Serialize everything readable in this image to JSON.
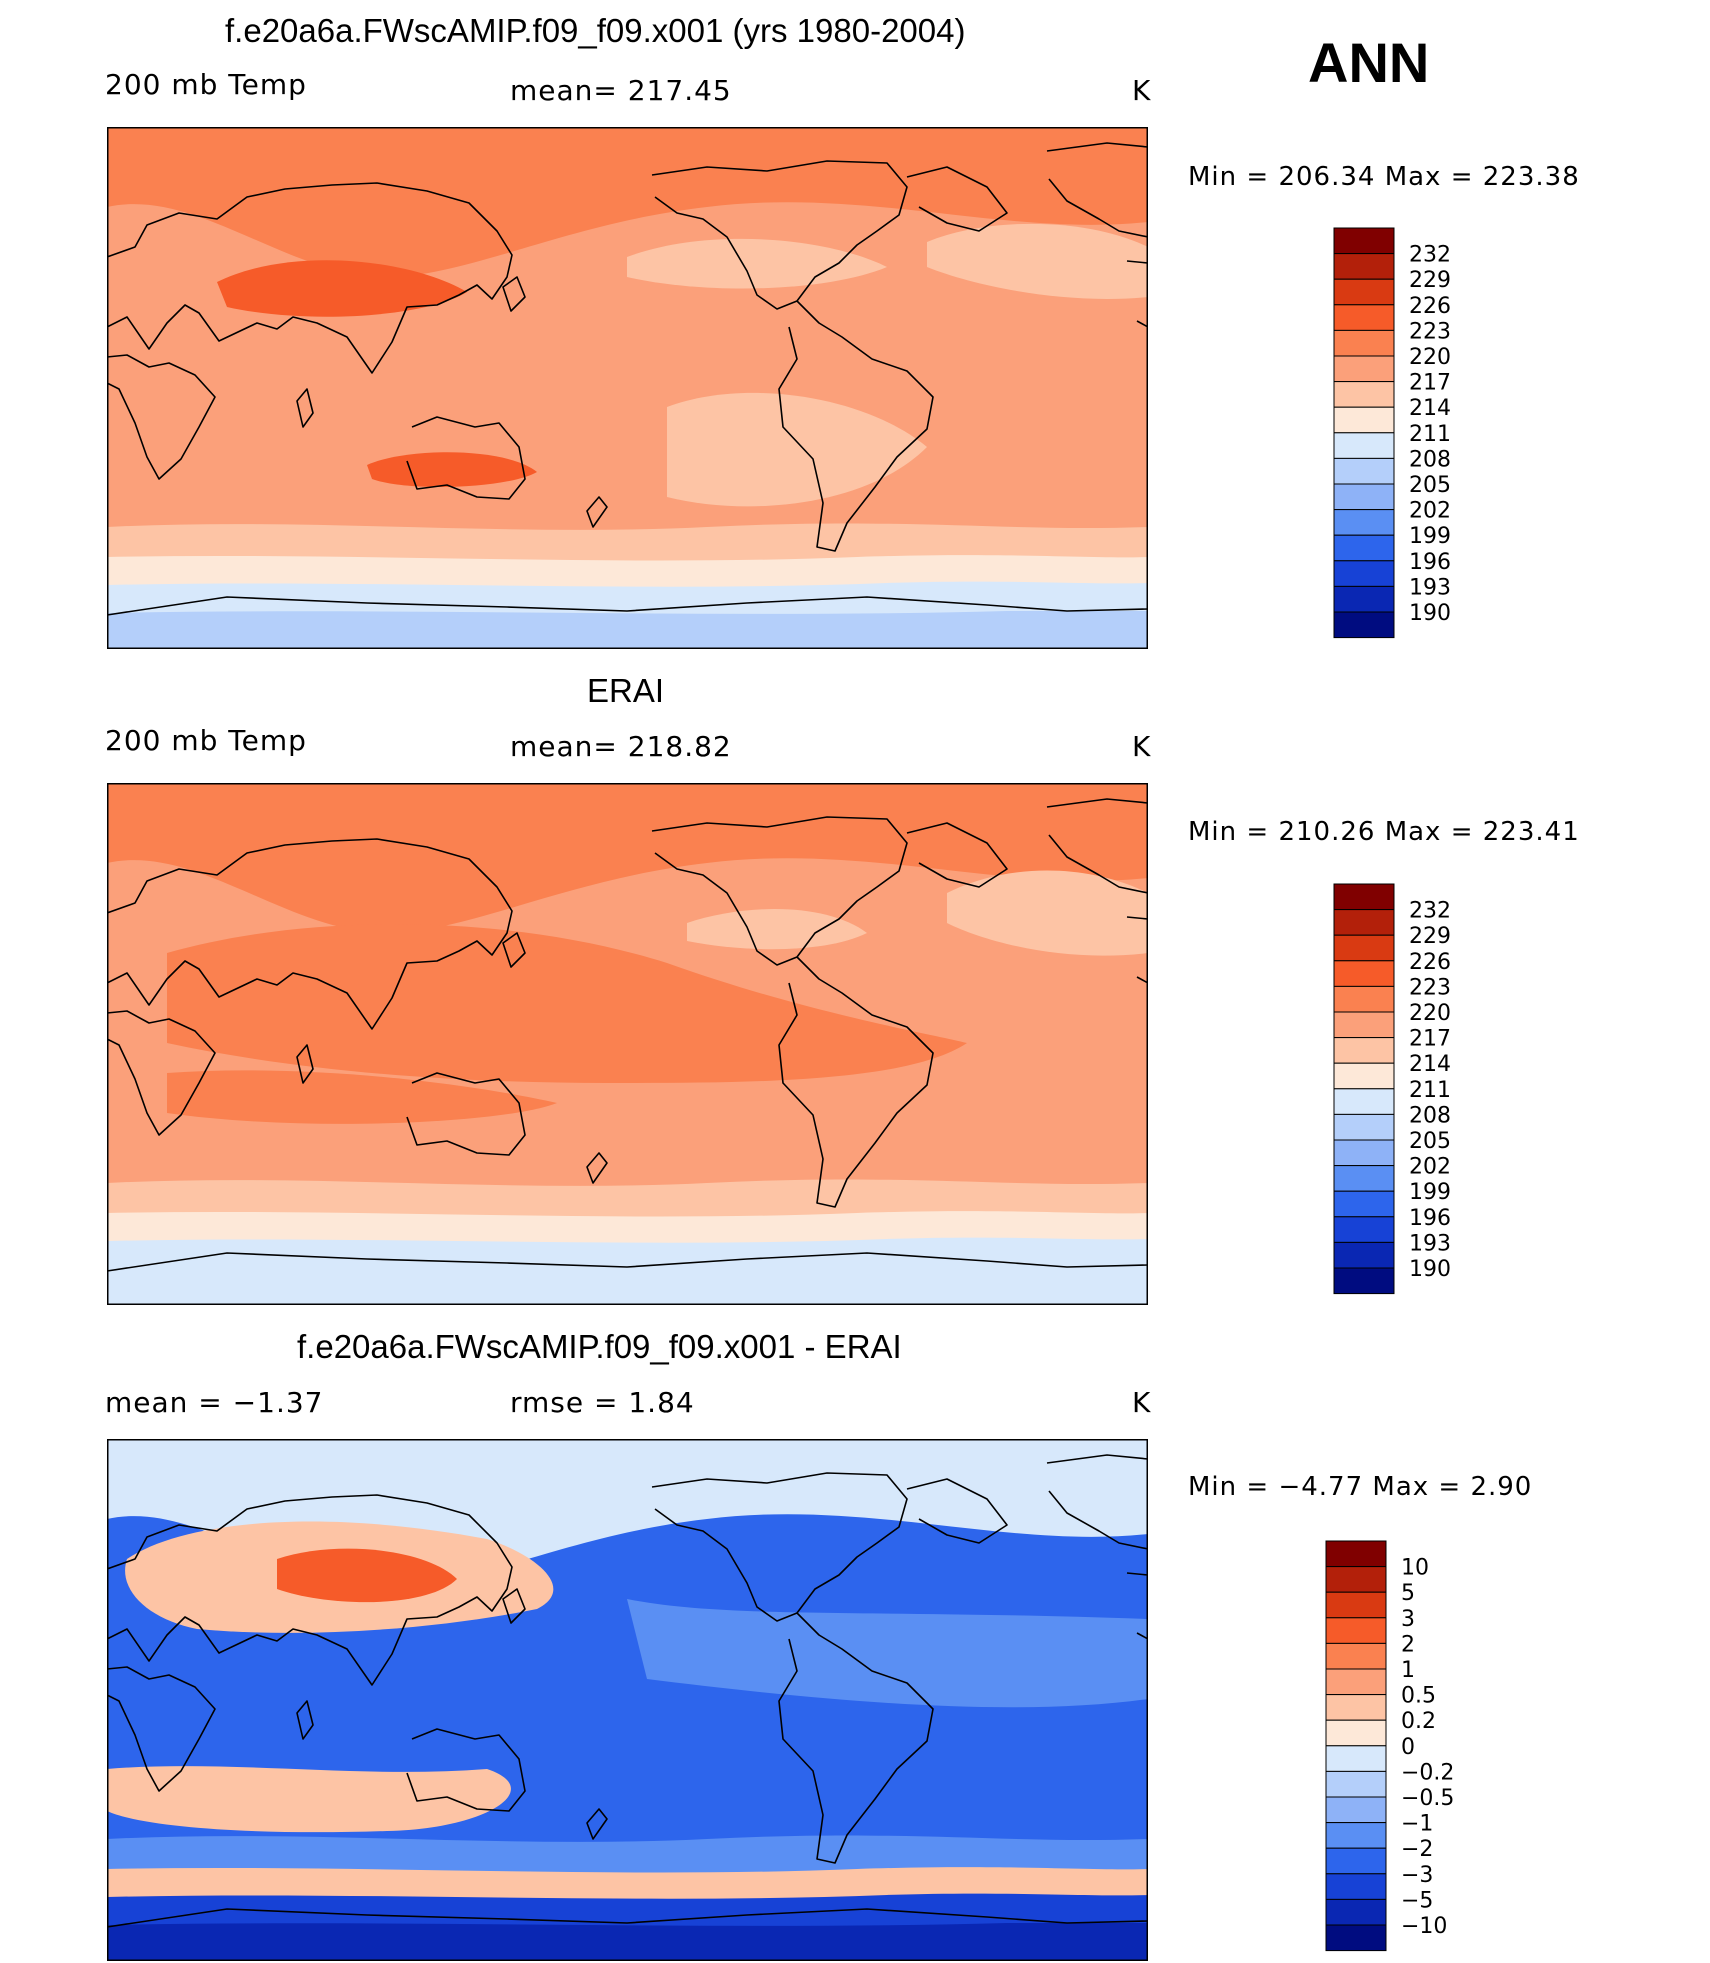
{
  "season": "ANN",
  "panels": [
    {
      "title": "f.e20a6a.FWscAMIP.f09_f09.x001 (yrs 1980-2004)",
      "left_label": "200 mb Temp",
      "center_label": "mean= 217.45",
      "units": "K",
      "range_text": "Min  =  206.34  Max  =  223.38",
      "colorbar": {
        "levels": [
          "232",
          "229",
          "226",
          "223",
          "220",
          "217",
          "214",
          "211",
          "208",
          "205",
          "202",
          "199",
          "196",
          "193",
          "190"
        ],
        "colors": [
          "#800000",
          "#b3200a",
          "#d93a12",
          "#f65b29",
          "#fa8150",
          "#fba07a",
          "#fdc4a5",
          "#fde8d8",
          "#d7e8fb",
          "#b4cffa",
          "#8eb2f7",
          "#5a8ff3",
          "#2d65ec",
          "#1742d6",
          "#0a27b3",
          "#000c80"
        ]
      },
      "field_colors": {
        "cap": "#fa8150",
        "warm": "#f65b29",
        "base": "#fba07a",
        "cool": "#fdc4a5",
        "cold": "#fde8d8",
        "ice": "#d7e8fb",
        "deep": "#b4cffa"
      }
    },
    {
      "title": "ERAI",
      "left_label": "200 mb Temp",
      "center_label": "mean= 218.82",
      "units": "K",
      "range_text": "Min  =  210.26  Max  =  223.41",
      "colorbar": {
        "levels": [
          "232",
          "229",
          "226",
          "223",
          "220",
          "217",
          "214",
          "211",
          "208",
          "205",
          "202",
          "199",
          "196",
          "193",
          "190"
        ],
        "colors": [
          "#800000",
          "#b3200a",
          "#d93a12",
          "#f65b29",
          "#fa8150",
          "#fba07a",
          "#fdc4a5",
          "#fde8d8",
          "#d7e8fb",
          "#b4cffa",
          "#8eb2f7",
          "#5a8ff3",
          "#2d65ec",
          "#1742d6",
          "#0a27b3",
          "#000c80"
        ]
      },
      "field_colors": {
        "cap": "#fa8150",
        "warm": "#fa8150",
        "base": "#fba07a",
        "cool": "#fdc4a5",
        "cold": "#fde8d8",
        "ice": "#d7e8fb",
        "deep": "#d7e8fb"
      }
    },
    {
      "title": "f.e20a6a.FWscAMIP.f09_f09.x001 - ERAI",
      "left_label": "mean  =   −1.37",
      "center_label": "rmse  =    1.84",
      "units": "K",
      "range_text": "Min  =   −4.77  Max  =     2.90",
      "colorbar": {
        "levels": [
          "10",
          "5",
          "3",
          "2",
          "1",
          "0.5",
          "0.2",
          "0",
          "−0.2",
          "−0.5",
          "−1",
          "−2",
          "−3",
          "−5",
          "−10"
        ],
        "colors": [
          "#800000",
          "#b3200a",
          "#d93a12",
          "#f65b29",
          "#fa8150",
          "#fba07a",
          "#fdc4a5",
          "#fde8d8",
          "#d7e8fb",
          "#b4cffa",
          "#8eb2f7",
          "#5a8ff3",
          "#2d65ec",
          "#1742d6",
          "#0a27b3",
          "#000c80"
        ]
      },
      "field_colors": {
        "cap": "#d7e8fb",
        "warm": "#f65b29",
        "base": "#2d65ec",
        "cool": "#5a8ff3",
        "cold": "#fdc4a5",
        "ice": "#1742d6",
        "deep": "#0a27b3"
      }
    }
  ]
}
